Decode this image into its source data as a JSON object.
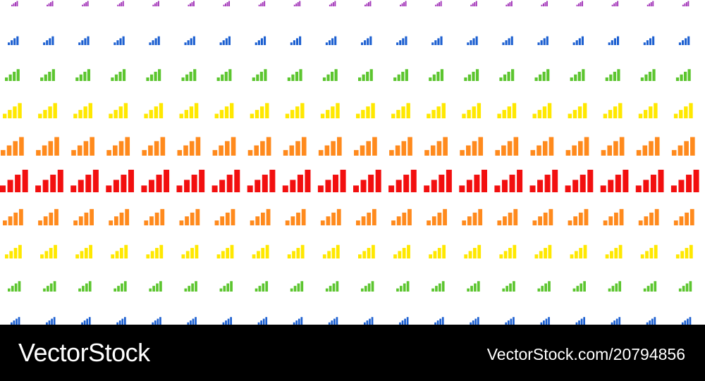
{
  "pattern": {
    "icon": "bar-chart-icon",
    "rows": [
      {
        "color": "#a234b8"
      },
      {
        "color": "#1c5fd0"
      },
      {
        "color": "#5cc52f"
      },
      {
        "color": "#ffe800"
      },
      {
        "color": "#ff8a1d"
      },
      {
        "color": "#f20f0f"
      },
      {
        "color": "#ff8a1d"
      },
      {
        "color": "#ffe800"
      },
      {
        "color": "#5cc52f"
      },
      {
        "color": "#1c5fd0"
      }
    ]
  },
  "footer": {
    "logo": "VectorStock",
    "image_id": "VectorStock.com/20794856"
  }
}
